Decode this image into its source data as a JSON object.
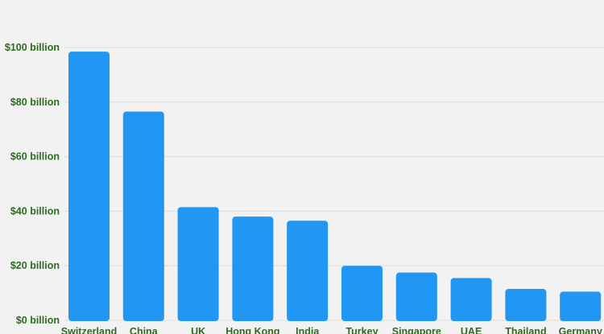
{
  "chart_data": {
    "type": "bar",
    "categories": [
      "Switzerland",
      "China",
      "UK",
      "Hong Kong",
      "India",
      "Turkey",
      "Singapore",
      "UAE",
      "Thailand",
      "Germany"
    ],
    "values": [
      98.5,
      76.5,
      41.5,
      38,
      36.5,
      20,
      17.5,
      15.5,
      11.5,
      10.5
    ],
    "ylim": [
      0,
      100
    ],
    "yticks": [
      0,
      20,
      40,
      60,
      80,
      100
    ],
    "ytick_labels": [
      "$0 billion",
      "$20 billion",
      "$40 billion",
      "$60 billion",
      "$80 billion",
      "$100 billion"
    ],
    "grid": true,
    "colors": {
      "bar": "#2196f3",
      "axis_text": "#2e6b20",
      "grid": "#dcdcdc",
      "background": "#f2f2f2"
    }
  }
}
